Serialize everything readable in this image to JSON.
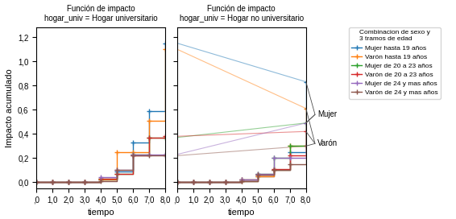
{
  "chart_data": [
    {
      "type": "step",
      "title": "Función de impacto",
      "subtitle": "hogar_univ = Hogar universitario",
      "xlabel": "tiempo",
      "ylabel": "Impacto acumulado",
      "marker": "+",
      "xlim": [
        0,
        8.0
      ],
      "ylim": [
        -0.05,
        1.28
      ],
      "xticks": [
        {
          "value": 0,
          "label": ",0"
        },
        {
          "value": 1.0,
          "label": "1,0"
        },
        {
          "value": 2.0,
          "label": "2,0"
        },
        {
          "value": 3.0,
          "label": "3,0"
        },
        {
          "value": 4.0,
          "label": "4,0"
        },
        {
          "value": 5.0,
          "label": "5,0"
        },
        {
          "value": 6.0,
          "label": "6,0"
        },
        {
          "value": 7.0,
          "label": "7,0"
        },
        {
          "value": 8.0,
          "label": "8,0"
        }
      ],
      "yticks": [
        {
          "value": 0.0,
          "label": "0,0"
        },
        {
          "value": 0.2,
          "label": "0,2"
        },
        {
          "value": 0.4,
          "label": "0,4"
        },
        {
          "value": 0.6,
          "label": "0,6"
        },
        {
          "value": 0.8,
          "label": "0,8"
        },
        {
          "value": 1.0,
          "label": "1,0"
        },
        {
          "value": 1.2,
          "label": "1,2"
        }
      ],
      "x": [
        0,
        1,
        2,
        3,
        4,
        5,
        6,
        7,
        8
      ],
      "series": [
        {
          "name": "Mujer hasta 19 años",
          "values": [
            0,
            0,
            0,
            0,
            0.02,
            0.09,
            0.33,
            0.59,
            1.15
          ]
        },
        {
          "name": "Varón hasta 19 años",
          "values": [
            0,
            0,
            0,
            0,
            0.02,
            0.25,
            0.25,
            0.51,
            1.1
          ]
        },
        {
          "name": "Mujer de 20 a 23 años",
          "values": [
            0,
            0,
            0,
            0,
            0.03,
            0.07,
            0.23,
            0.37,
            0.37
          ]
        },
        {
          "name": "Varón de 20 a 23 años",
          "values": [
            0,
            0,
            0,
            0,
            0.03,
            0.07,
            0.22,
            0.37,
            0.38
          ]
        },
        {
          "name": "Mujer de 24 y mas años",
          "values": [
            0,
            0,
            0,
            0,
            0.04,
            0.1,
            0.23,
            0.23,
            0.23
          ]
        },
        {
          "name": "Varón de 24 y mas años",
          "values": [
            0,
            0,
            0,
            0,
            0.01,
            0.1,
            0.22,
            0.22,
            0.22
          ]
        }
      ]
    },
    {
      "type": "step",
      "title": "Función de impacto",
      "subtitle": "hogar_univ = Hogar no universitario",
      "xlabel": "tiempo",
      "marker": "+",
      "tick_labels": "x",
      "xlim": [
        0,
        8.0
      ],
      "ylim": [
        -0.05,
        1.28
      ],
      "xticks": [
        {
          "value": 0,
          "label": ",0"
        },
        {
          "value": 1.0,
          "label": "1,0"
        },
        {
          "value": 2.0,
          "label": "2,0"
        },
        {
          "value": 3.0,
          "label": "3,0"
        },
        {
          "value": 4.0,
          "label": "4,0"
        },
        {
          "value": 5.0,
          "label": "5,0"
        },
        {
          "value": 6.0,
          "label": "6,0"
        },
        {
          "value": 7.0,
          "label": "7,0"
        },
        {
          "value": 8.0,
          "label": "8,0"
        }
      ],
      "yticks": [
        0.0,
        0.2,
        0.4,
        0.6,
        0.8,
        1.0,
        1.2
      ],
      "x": [
        0,
        1,
        2,
        3,
        4,
        5,
        6,
        7,
        8
      ],
      "series": [
        {
          "name": "Mujer hasta 19 años",
          "values": [
            0,
            0,
            0,
            0,
            0.01,
            0.05,
            0.1,
            0.25,
            0.83
          ],
          "link": {
            "x": [
              0,
              8
            ],
            "values": [
              1.15,
              0.83
            ]
          }
        },
        {
          "name": "Varón hasta 19 años",
          "values": [
            0,
            0,
            0,
            0,
            0.01,
            0.05,
            0.1,
            0.3,
            0.61
          ],
          "link": {
            "x": [
              0,
              8
            ],
            "values": [
              1.1,
              0.61
            ]
          }
        },
        {
          "name": "Mujer de 20 a 23 años",
          "values": [
            0,
            0,
            0,
            0,
            0.02,
            0.07,
            0.2,
            0.3,
            0.49
          ],
          "link": {
            "x": [
              0,
              8
            ],
            "values": [
              0.37,
              0.49
            ]
          }
        },
        {
          "name": "Varón de 20 a 23 años",
          "values": [
            0,
            0,
            0,
            0,
            0.02,
            0.06,
            0.11,
            0.22,
            0.42
          ],
          "link": {
            "x": [
              0,
              8
            ],
            "values": [
              0.38,
              0.42
            ]
          }
        },
        {
          "name": "Mujer de 24 y mas años",
          "values": [
            0,
            0,
            0,
            0,
            0.02,
            0.07,
            0.2,
            0.2,
            0.49
          ],
          "link": {
            "x": [
              0,
              8
            ],
            "values": [
              0.23,
              0.49
            ]
          }
        },
        {
          "name": "Varón de 24 y mas años",
          "values": [
            0,
            0,
            0,
            0,
            0.01,
            0.06,
            0.1,
            0.15,
            0.3
          ],
          "link": {
            "x": [
              0,
              8
            ],
            "values": [
              0.22,
              0.3
            ]
          }
        }
      ],
      "legend": "upper left",
      "legend_title": "Combinacion de sexo y\n3 tramos de edad",
      "annotations": [
        {
          "text": "Mujer",
          "y": 0.56,
          "from_x": 8,
          "from": [
            0.83,
            0.49,
            0.49
          ]
        },
        {
          "text": "Varón",
          "y": 0.32,
          "from_x": 8,
          "from": [
            0.61,
            0.42,
            0.3
          ]
        }
      ]
    }
  ]
}
